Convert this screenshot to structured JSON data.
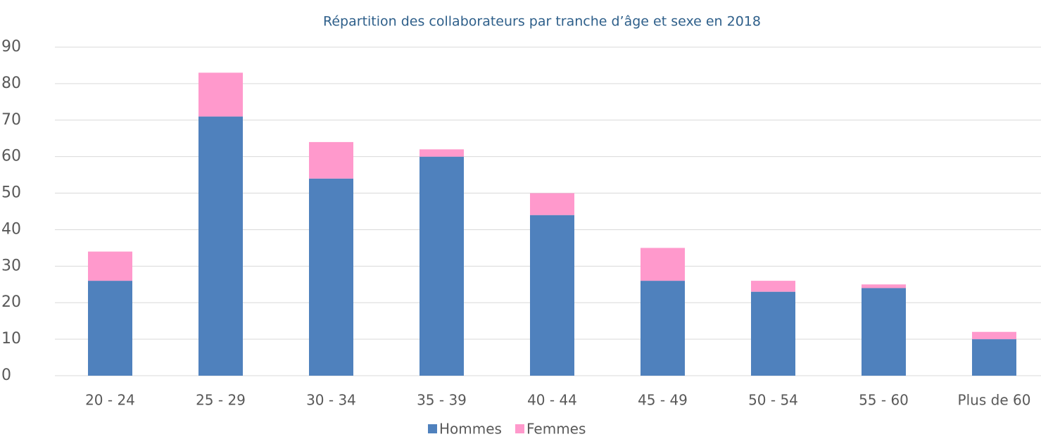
{
  "chart_data": {
    "type": "stacked_bar",
    "title": "Répartition des collaborateurs par tranche d’âge et sexe en 2018",
    "categories": [
      "20 - 24",
      "25 - 29",
      "30 - 34",
      "35 - 39",
      "40 - 44",
      "45 - 49",
      "50 - 54",
      "55 - 60",
      "Plus de 60"
    ],
    "series": [
      {
        "name": "Hommes",
        "color": "#4f81bd",
        "values": [
          26,
          71,
          54,
          60,
          44,
          26,
          23,
          24,
          10
        ]
      },
      {
        "name": "Femmes",
        "color": "#ff99cc",
        "values": [
          8,
          12,
          10,
          2,
          6,
          9,
          3,
          1,
          2
        ]
      }
    ],
    "ylim": [
      0,
      90
    ],
    "yticks": [
      0,
      10,
      20,
      30,
      40,
      50,
      60,
      70,
      80,
      90
    ],
    "grid": true,
    "legend": "bottom"
  }
}
